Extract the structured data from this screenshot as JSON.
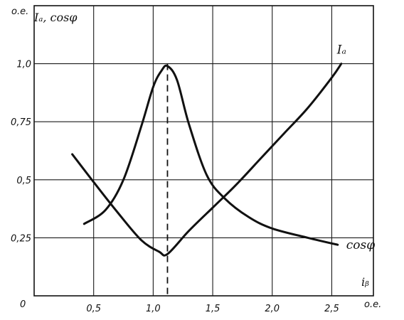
{
  "chart_data": {
    "type": "line",
    "xlim": [
      0,
      2.85
    ],
    "ylim": [
      0,
      1.25
    ],
    "y_axis_title": "Iₐ, cosφ",
    "y_unit": "o.e.",
    "x_axis_title": "iᵦ",
    "x_unit": "o.e.",
    "origin_label": "0",
    "grid": true,
    "x_ticks": [
      {
        "value": 0.5,
        "label": "0,5"
      },
      {
        "value": 1.0,
        "label": "1,0"
      },
      {
        "value": 1.5,
        "label": "1,5"
      },
      {
        "value": 2.0,
        "label": "2,0"
      },
      {
        "value": 2.5,
        "label": "2,5"
      }
    ],
    "y_ticks": [
      {
        "value": 0.25,
        "label": "0,25"
      },
      {
        "value": 0.5,
        "label": "0,5"
      },
      {
        "value": 0.75,
        "label": "0,75"
      },
      {
        "value": 1.0,
        "label": "1,0"
      }
    ],
    "marker_line": {
      "x": 1.12,
      "y_top": 1.0
    },
    "series": [
      {
        "name": "Iₐ",
        "label_position": "end",
        "x": [
          0.32,
          0.5,
          0.7,
          0.9,
          1.05,
          1.12,
          1.3,
          1.5,
          1.7,
          1.9,
          2.1,
          2.3,
          2.5,
          2.58
        ],
        "y": [
          0.61,
          0.49,
          0.36,
          0.24,
          0.19,
          0.18,
          0.28,
          0.38,
          0.48,
          0.59,
          0.7,
          0.81,
          0.94,
          1.0
        ]
      },
      {
        "name": "cosφ",
        "label_position": "end",
        "x": [
          0.42,
          0.6,
          0.75,
          0.9,
          1.0,
          1.07,
          1.12,
          1.2,
          1.3,
          1.45,
          1.6,
          1.8,
          2.0,
          2.3,
          2.55
        ],
        "y": [
          0.31,
          0.37,
          0.5,
          0.73,
          0.9,
          0.97,
          0.99,
          0.93,
          0.74,
          0.52,
          0.42,
          0.34,
          0.29,
          0.25,
          0.22
        ]
      }
    ]
  }
}
